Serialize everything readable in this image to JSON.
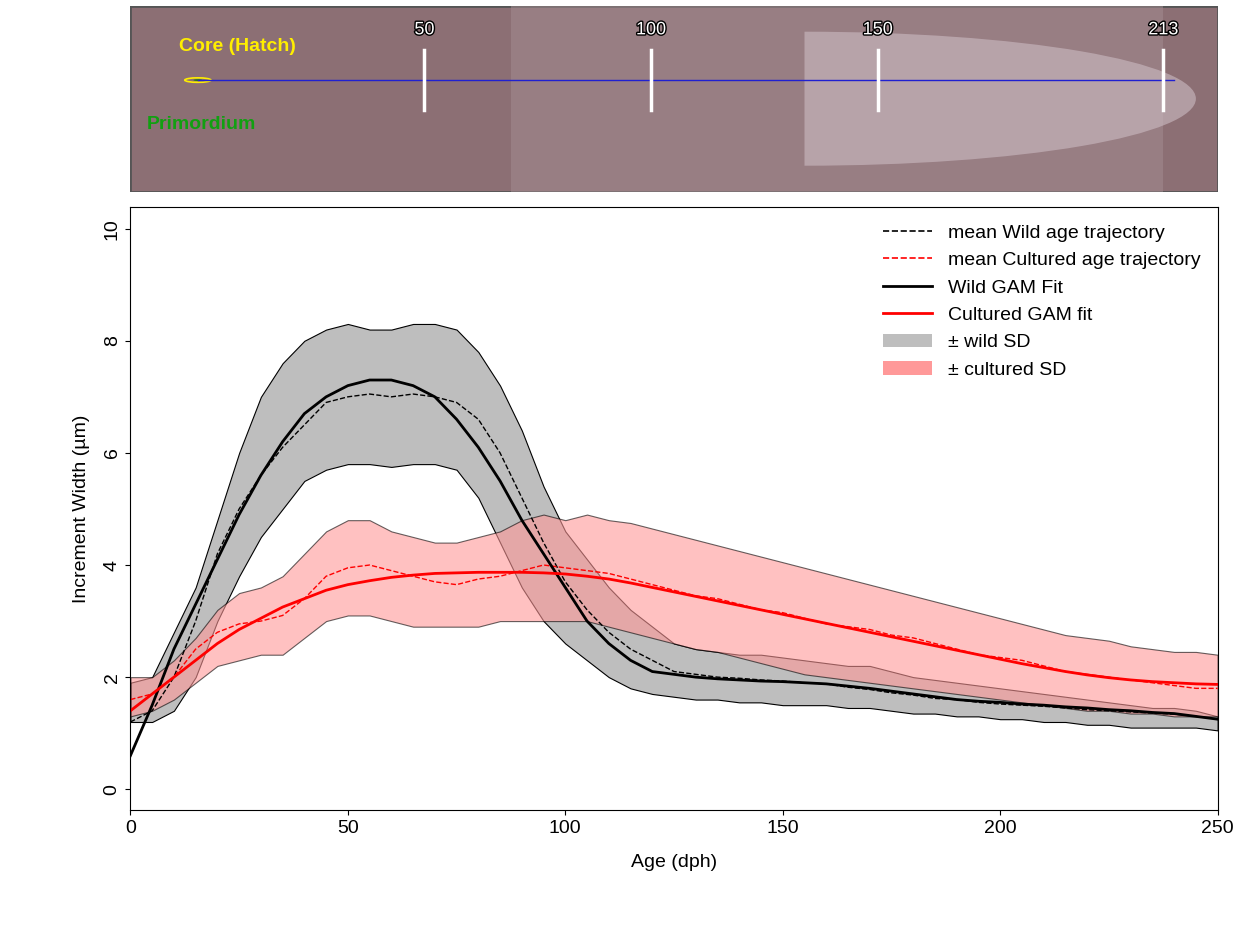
{
  "chart_data": [
    {
      "type": "image_strip",
      "labels": {
        "core": "Core (Hatch)",
        "primordium": "Primordium"
      },
      "marks": [
        50,
        100,
        150,
        213
      ]
    },
    {
      "type": "line",
      "xlabel": "Age (dph)",
      "ylabel": "Increment Width (µm)",
      "xlim": [
        0,
        250
      ],
      "ylim": [
        -0.375,
        10.39
      ],
      "xticks": [
        0,
        50,
        100,
        150,
        200,
        250
      ],
      "yticks": [
        0,
        2,
        4,
        6,
        8,
        10
      ],
      "legend": "upper right",
      "x": [
        0,
        5,
        10,
        15,
        20,
        25,
        30,
        35,
        40,
        45,
        50,
        55,
        60,
        65,
        70,
        75,
        80,
        85,
        90,
        95,
        100,
        105,
        110,
        115,
        120,
        125,
        130,
        135,
        140,
        145,
        150,
        155,
        160,
        165,
        170,
        175,
        180,
        185,
        190,
        195,
        200,
        205,
        210,
        215,
        220,
        225,
        230,
        235,
        240,
        245,
        250
      ],
      "series": [
        {
          "name": "mean Wild age trajectory",
          "type": "line",
          "color": "#000000",
          "line_style": "dashed",
          "values": [
            1.2,
            1.4,
            2.0,
            3.0,
            4.2,
            5.0,
            5.6,
            6.1,
            6.5,
            6.9,
            7.0,
            7.05,
            7.0,
            7.05,
            7.0,
            6.9,
            6.6,
            6.0,
            5.2,
            4.4,
            3.7,
            3.2,
            2.8,
            2.5,
            2.3,
            2.1,
            2.05,
            2.0,
            1.98,
            1.95,
            1.93,
            1.9,
            1.88,
            1.82,
            1.78,
            1.72,
            1.68,
            1.62,
            1.6,
            1.55,
            1.52,
            1.5,
            1.48,
            1.45,
            1.42,
            1.4,
            1.38,
            1.36,
            1.34,
            1.3,
            1.25
          ]
        },
        {
          "name": "mean Cultured age trajectory",
          "type": "line",
          "color": "#ff0000",
          "line_style": "dashed",
          "values": [
            1.6,
            1.7,
            2.0,
            2.5,
            2.8,
            2.95,
            3.0,
            3.1,
            3.4,
            3.8,
            3.95,
            4.0,
            3.9,
            3.8,
            3.7,
            3.65,
            3.75,
            3.8,
            3.9,
            4.0,
            3.95,
            3.9,
            3.85,
            3.75,
            3.65,
            3.55,
            3.45,
            3.4,
            3.3,
            3.2,
            3.15,
            3.05,
            2.95,
            2.9,
            2.85,
            2.75,
            2.7,
            2.6,
            2.5,
            2.4,
            2.35,
            2.3,
            2.2,
            2.1,
            2.05,
            2.0,
            1.95,
            1.9,
            1.85,
            1.8,
            1.8
          ]
        },
        {
          "name": "Wild GAM Fit",
          "type": "line",
          "color": "#000000",
          "line_style": "solid",
          "values": [
            0.6,
            1.5,
            2.5,
            3.3,
            4.1,
            4.9,
            5.6,
            6.2,
            6.7,
            7.0,
            7.2,
            7.3,
            7.3,
            7.2,
            7.0,
            6.6,
            6.1,
            5.5,
            4.8,
            4.2,
            3.6,
            3.0,
            2.6,
            2.3,
            2.1,
            2.05,
            2.0,
            1.97,
            1.95,
            1.93,
            1.92,
            1.9,
            1.88,
            1.84,
            1.8,
            1.75,
            1.7,
            1.65,
            1.6,
            1.57,
            1.55,
            1.52,
            1.5,
            1.47,
            1.45,
            1.42,
            1.4,
            1.37,
            1.35,
            1.3,
            1.25
          ]
        },
        {
          "name": "Cultured GAM fit",
          "type": "line",
          "color": "#ff0000",
          "line_style": "solid",
          "values": [
            1.4,
            1.7,
            2.0,
            2.3,
            2.6,
            2.85,
            3.05,
            3.25,
            3.4,
            3.55,
            3.65,
            3.72,
            3.78,
            3.82,
            3.85,
            3.86,
            3.87,
            3.87,
            3.87,
            3.86,
            3.84,
            3.8,
            3.75,
            3.68,
            3.6,
            3.52,
            3.44,
            3.36,
            3.28,
            3.2,
            3.12,
            3.04,
            2.96,
            2.88,
            2.8,
            2.72,
            2.64,
            2.56,
            2.48,
            2.4,
            2.32,
            2.24,
            2.17,
            2.1,
            2.04,
            1.99,
            1.95,
            1.92,
            1.9,
            1.88,
            1.87
          ]
        },
        {
          "name": "± wild SD",
          "type": "band",
          "color": "#bebebe",
          "lower": [
            1.2,
            1.2,
            1.4,
            2.0,
            3.0,
            3.8,
            4.5,
            5.0,
            5.5,
            5.7,
            5.8,
            5.8,
            5.75,
            5.8,
            5.8,
            5.7,
            5.2,
            4.4,
            3.6,
            3.0,
            2.6,
            2.3,
            2.0,
            1.8,
            1.7,
            1.65,
            1.6,
            1.6,
            1.55,
            1.55,
            1.5,
            1.5,
            1.5,
            1.45,
            1.45,
            1.4,
            1.35,
            1.35,
            1.3,
            1.3,
            1.25,
            1.25,
            1.2,
            1.2,
            1.15,
            1.15,
            1.1,
            1.1,
            1.1,
            1.1,
            1.05
          ],
          "upper": [
            1.9,
            2.0,
            2.8,
            3.6,
            4.8,
            6.0,
            7.0,
            7.6,
            8.0,
            8.2,
            8.3,
            8.2,
            8.2,
            8.3,
            8.3,
            8.2,
            7.8,
            7.2,
            6.4,
            5.4,
            4.6,
            4.1,
            3.6,
            3.2,
            2.9,
            2.6,
            2.5,
            2.45,
            2.4,
            2.4,
            2.35,
            2.3,
            2.25,
            2.2,
            2.2,
            2.1,
            2.0,
            1.95,
            1.9,
            1.85,
            1.8,
            1.75,
            1.7,
            1.65,
            1.6,
            1.55,
            1.5,
            1.45,
            1.45,
            1.4,
            1.3
          ]
        },
        {
          "name": "± cultured SD",
          "type": "band",
          "color": "#ff9999",
          "lower": [
            1.3,
            1.4,
            1.6,
            1.9,
            2.2,
            2.3,
            2.4,
            2.4,
            2.7,
            3.0,
            3.1,
            3.1,
            3.0,
            2.9,
            2.9,
            2.9,
            2.9,
            3.0,
            3.0,
            3.0,
            3.0,
            3.0,
            2.9,
            2.8,
            2.7,
            2.6,
            2.5,
            2.45,
            2.35,
            2.25,
            2.15,
            2.05,
            2.0,
            1.95,
            1.9,
            1.85,
            1.8,
            1.75,
            1.7,
            1.65,
            1.6,
            1.55,
            1.5,
            1.45,
            1.4,
            1.4,
            1.35,
            1.35,
            1.3,
            1.3,
            1.3
          ],
          "upper": [
            2.0,
            2.0,
            2.3,
            2.7,
            3.2,
            3.5,
            3.6,
            3.8,
            4.2,
            4.6,
            4.8,
            4.8,
            4.6,
            4.5,
            4.4,
            4.4,
            4.5,
            4.6,
            4.8,
            4.9,
            4.8,
            4.9,
            4.8,
            4.75,
            4.65,
            4.55,
            4.45,
            4.35,
            4.25,
            4.15,
            4.05,
            3.95,
            3.85,
            3.75,
            3.65,
            3.55,
            3.45,
            3.35,
            3.25,
            3.15,
            3.05,
            2.95,
            2.85,
            2.75,
            2.7,
            2.65,
            2.55,
            2.5,
            2.45,
            2.45,
            2.4
          ]
        }
      ]
    }
  ]
}
